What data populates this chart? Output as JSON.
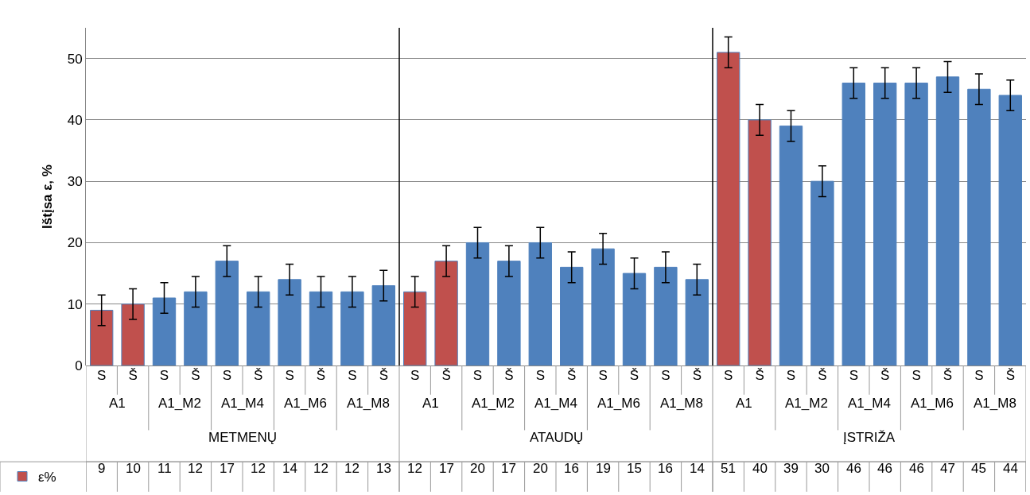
{
  "chart_data": {
    "type": "bar",
    "ylabel": "Ištįsa ε, %",
    "categories": [
      "S",
      "Š",
      "S",
      "Š",
      "S",
      "Š",
      "S",
      "Š",
      "S",
      "Š",
      "S",
      "Š",
      "S",
      "Š",
      "S",
      "Š",
      "S",
      "Š",
      "S",
      "Š",
      "S",
      "Š",
      "S",
      "Š",
      "S",
      "Š",
      "S",
      "Š",
      "S",
      "Š"
    ],
    "series": [
      {
        "name": "ε%",
        "color": "#4f81bd",
        "colors": [
          "#c0504d",
          "#c0504d",
          "#4f81bd",
          "#4f81bd",
          "#4f81bd",
          "#4f81bd",
          "#4f81bd",
          "#4f81bd",
          "#4f81bd",
          "#4f81bd",
          "#c0504d",
          "#c0504d",
          "#4f81bd",
          "#4f81bd",
          "#4f81bd",
          "#4f81bd",
          "#4f81bd",
          "#4f81bd",
          "#4f81bd",
          "#4f81bd",
          "#c0504d",
          "#c0504d",
          "#4f81bd",
          "#4f81bd",
          "#4f81bd",
          "#4f81bd",
          "#4f81bd",
          "#4f81bd",
          "#4f81bd",
          "#4f81bd"
        ],
        "values": [
          9,
          10,
          11,
          12,
          17,
          12,
          14,
          12,
          12,
          13,
          12,
          17,
          20,
          17,
          20,
          16,
          19,
          15,
          16,
          14,
          51,
          40,
          39,
          30,
          46,
          46,
          46,
          47,
          45,
          44
        ],
        "errors": [
          2.5,
          2.5,
          2.5,
          2.5,
          2.5,
          2.5,
          2.5,
          2.5,
          2.5,
          2.5,
          2.5,
          2.5,
          2.5,
          2.5,
          2.5,
          2.5,
          2.5,
          2.5,
          2.5,
          2.5,
          2.5,
          2.5,
          2.5,
          2.5,
          2.5,
          2.5,
          2.5,
          2.5,
          2.5,
          2.5
        ]
      }
    ],
    "annotations": [
      "A1",
      "A1_M2",
      "A1_M4",
      "A1_M6",
      "A1_M8",
      "A1",
      "A1_M2",
      "A1_M4",
      "A1_M6",
      "A1_M8",
      "A1",
      "A1_M2",
      "A1_M4",
      "A1_M6",
      "A1_M8",
      "METMENŲ",
      "ATAUDŲ",
      "ĮSTRIŽA"
    ],
    "ylim": [
      0,
      55
    ],
    "yticks": [
      0,
      10,
      20,
      30,
      40,
      50
    ],
    "grid": "y",
    "data_labels": true,
    "legend": "bottom left"
  }
}
